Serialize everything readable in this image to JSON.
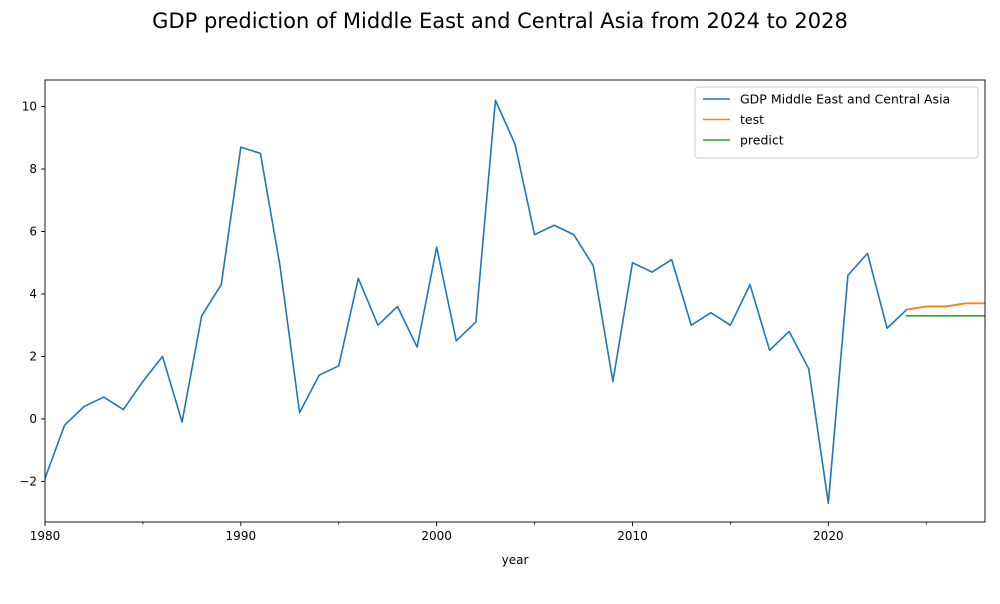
{
  "chart_data": {
    "type": "line",
    "title": "GDP prediction of Middle East and Central Asia from 2024 to 2028",
    "xlabel": "year",
    "ylabel": "",
    "xlim": [
      1980,
      2028
    ],
    "ylim": [
      -3.3,
      10.85
    ],
    "x_ticks_major": [
      1980,
      1990,
      2000,
      2010,
      2020
    ],
    "x_ticks_minor": [
      1985,
      1995,
      2005,
      2015,
      2025
    ],
    "y_ticks": [
      -2,
      0,
      2,
      4,
      6,
      8,
      10
    ],
    "legend_position": "top-right",
    "grid": false,
    "series": [
      {
        "name": "GDP Middle East and Central Asia",
        "color": "#1f77b4",
        "x": [
          1980,
          1981,
          1982,
          1983,
          1984,
          1985,
          1986,
          1987,
          1988,
          1989,
          1990,
          1991,
          1992,
          1993,
          1994,
          1995,
          1996,
          1997,
          1998,
          1999,
          2000,
          2001,
          2002,
          2003,
          2004,
          2005,
          2006,
          2007,
          2008,
          2009,
          2010,
          2011,
          2012,
          2013,
          2014,
          2015,
          2016,
          2017,
          2018,
          2019,
          2020,
          2021,
          2022,
          2023,
          2024,
          2025,
          2026,
          2027,
          2028
        ],
        "values": [
          -1.9,
          -0.2,
          0.4,
          0.7,
          0.3,
          1.2,
          2.0,
          -0.1,
          3.3,
          4.3,
          8.7,
          8.5,
          4.9,
          0.2,
          1.4,
          1.7,
          4.5,
          3.0,
          3.6,
          2.3,
          5.5,
          2.5,
          3.1,
          10.2,
          8.8,
          5.9,
          6.2,
          5.9,
          4.9,
          1.2,
          5.0,
          4.7,
          5.1,
          3.0,
          3.4,
          3.0,
          4.3,
          2.2,
          2.8,
          1.6,
          -2.7,
          4.6,
          5.3,
          2.9,
          3.5,
          3.6,
          3.6,
          3.7,
          3.7
        ]
      },
      {
        "name": "test",
        "color": "#ff7f0e",
        "x": [
          2024,
          2025,
          2026,
          2027,
          2028
        ],
        "values": [
          3.5,
          3.6,
          3.6,
          3.7,
          3.7
        ]
      },
      {
        "name": "predict",
        "color": "#2ca02c",
        "x": [
          2024,
          2025,
          2026,
          2027,
          2028
        ],
        "values": [
          3.3,
          3.3,
          3.3,
          3.3,
          3.3
        ]
      }
    ]
  }
}
